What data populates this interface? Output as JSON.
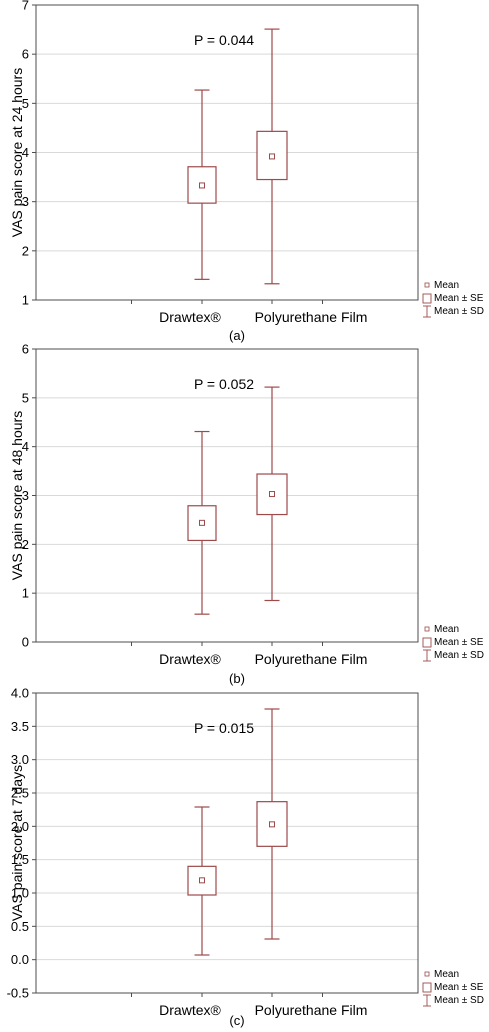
{
  "chart_data": [
    {
      "type": "boxplot",
      "panel_label": "(a)",
      "ylabel": "VAS pain score at 24 hours",
      "ylim": [
        1,
        7
      ],
      "yticks": [
        "1",
        "2",
        "3",
        "4",
        "5",
        "6",
        "7"
      ],
      "annotation": "P = 0.044",
      "categories": [
        "Drawtex®",
        "Polyurethane Film"
      ],
      "series": [
        {
          "category": "Drawtex®",
          "mean": 3.33,
          "se_low": 2.97,
          "se_high": 3.71,
          "sd_low": 1.42,
          "sd_high": 5.27
        },
        {
          "category": "Polyurethane Film",
          "mean": 3.92,
          "se_low": 3.45,
          "se_high": 4.43,
          "sd_low": 1.33,
          "sd_high": 6.51
        }
      ],
      "grid": true,
      "legend": [
        "Mean",
        "Mean ± SE",
        "Mean ± SD"
      ],
      "legend_position": "bottom-right"
    },
    {
      "type": "boxplot",
      "panel_label": "(b)",
      "ylabel": "VAS pain score at 48 hours",
      "ylim": [
        0,
        6
      ],
      "yticks": [
        "0",
        "1",
        "2",
        "3",
        "4",
        "5",
        "6"
      ],
      "annotation": "P = 0.052",
      "categories": [
        "Drawtex®",
        "Polyurethane Film"
      ],
      "series": [
        {
          "category": "Drawtex®",
          "mean": 2.44,
          "se_low": 2.08,
          "se_high": 2.79,
          "sd_low": 0.57,
          "sd_high": 4.31
        },
        {
          "category": "Polyurethane Film",
          "mean": 3.03,
          "se_low": 2.61,
          "se_high": 3.44,
          "sd_low": 0.85,
          "sd_high": 5.22
        }
      ],
      "grid": true,
      "legend": [
        "Mean",
        "Mean ± SE",
        "Mean ± SD"
      ],
      "legend_position": "bottom-right"
    },
    {
      "type": "boxplot",
      "panel_label": "(c)",
      "ylabel": "VAS pain score at 7 days",
      "ylim": [
        -0.5,
        4.0
      ],
      "yticks": [
        "-0.5",
        "0.0",
        "0.5",
        "1.0",
        "1.5",
        "2.0",
        "2.5",
        "3.0",
        "3.5",
        "4.0"
      ],
      "annotation": "P = 0.015",
      "categories": [
        "Drawtex®",
        "Polyurethane Film"
      ],
      "series": [
        {
          "category": "Drawtex®",
          "mean": 1.19,
          "se_low": 0.97,
          "se_high": 1.4,
          "sd_low": 0.07,
          "sd_high": 2.29
        },
        {
          "category": "Polyurethane Film",
          "mean": 2.03,
          "se_low": 1.7,
          "se_high": 2.37,
          "sd_low": 0.31,
          "sd_high": 3.76
        }
      ],
      "grid": true,
      "legend": [
        "Mean",
        "Mean ± SE",
        "Mean ± SD"
      ],
      "legend_position": "bottom-right"
    }
  ],
  "colors": {
    "box": "#9c4a4a",
    "frame": "#4d4d4d",
    "grid": "#d9d9d9"
  }
}
